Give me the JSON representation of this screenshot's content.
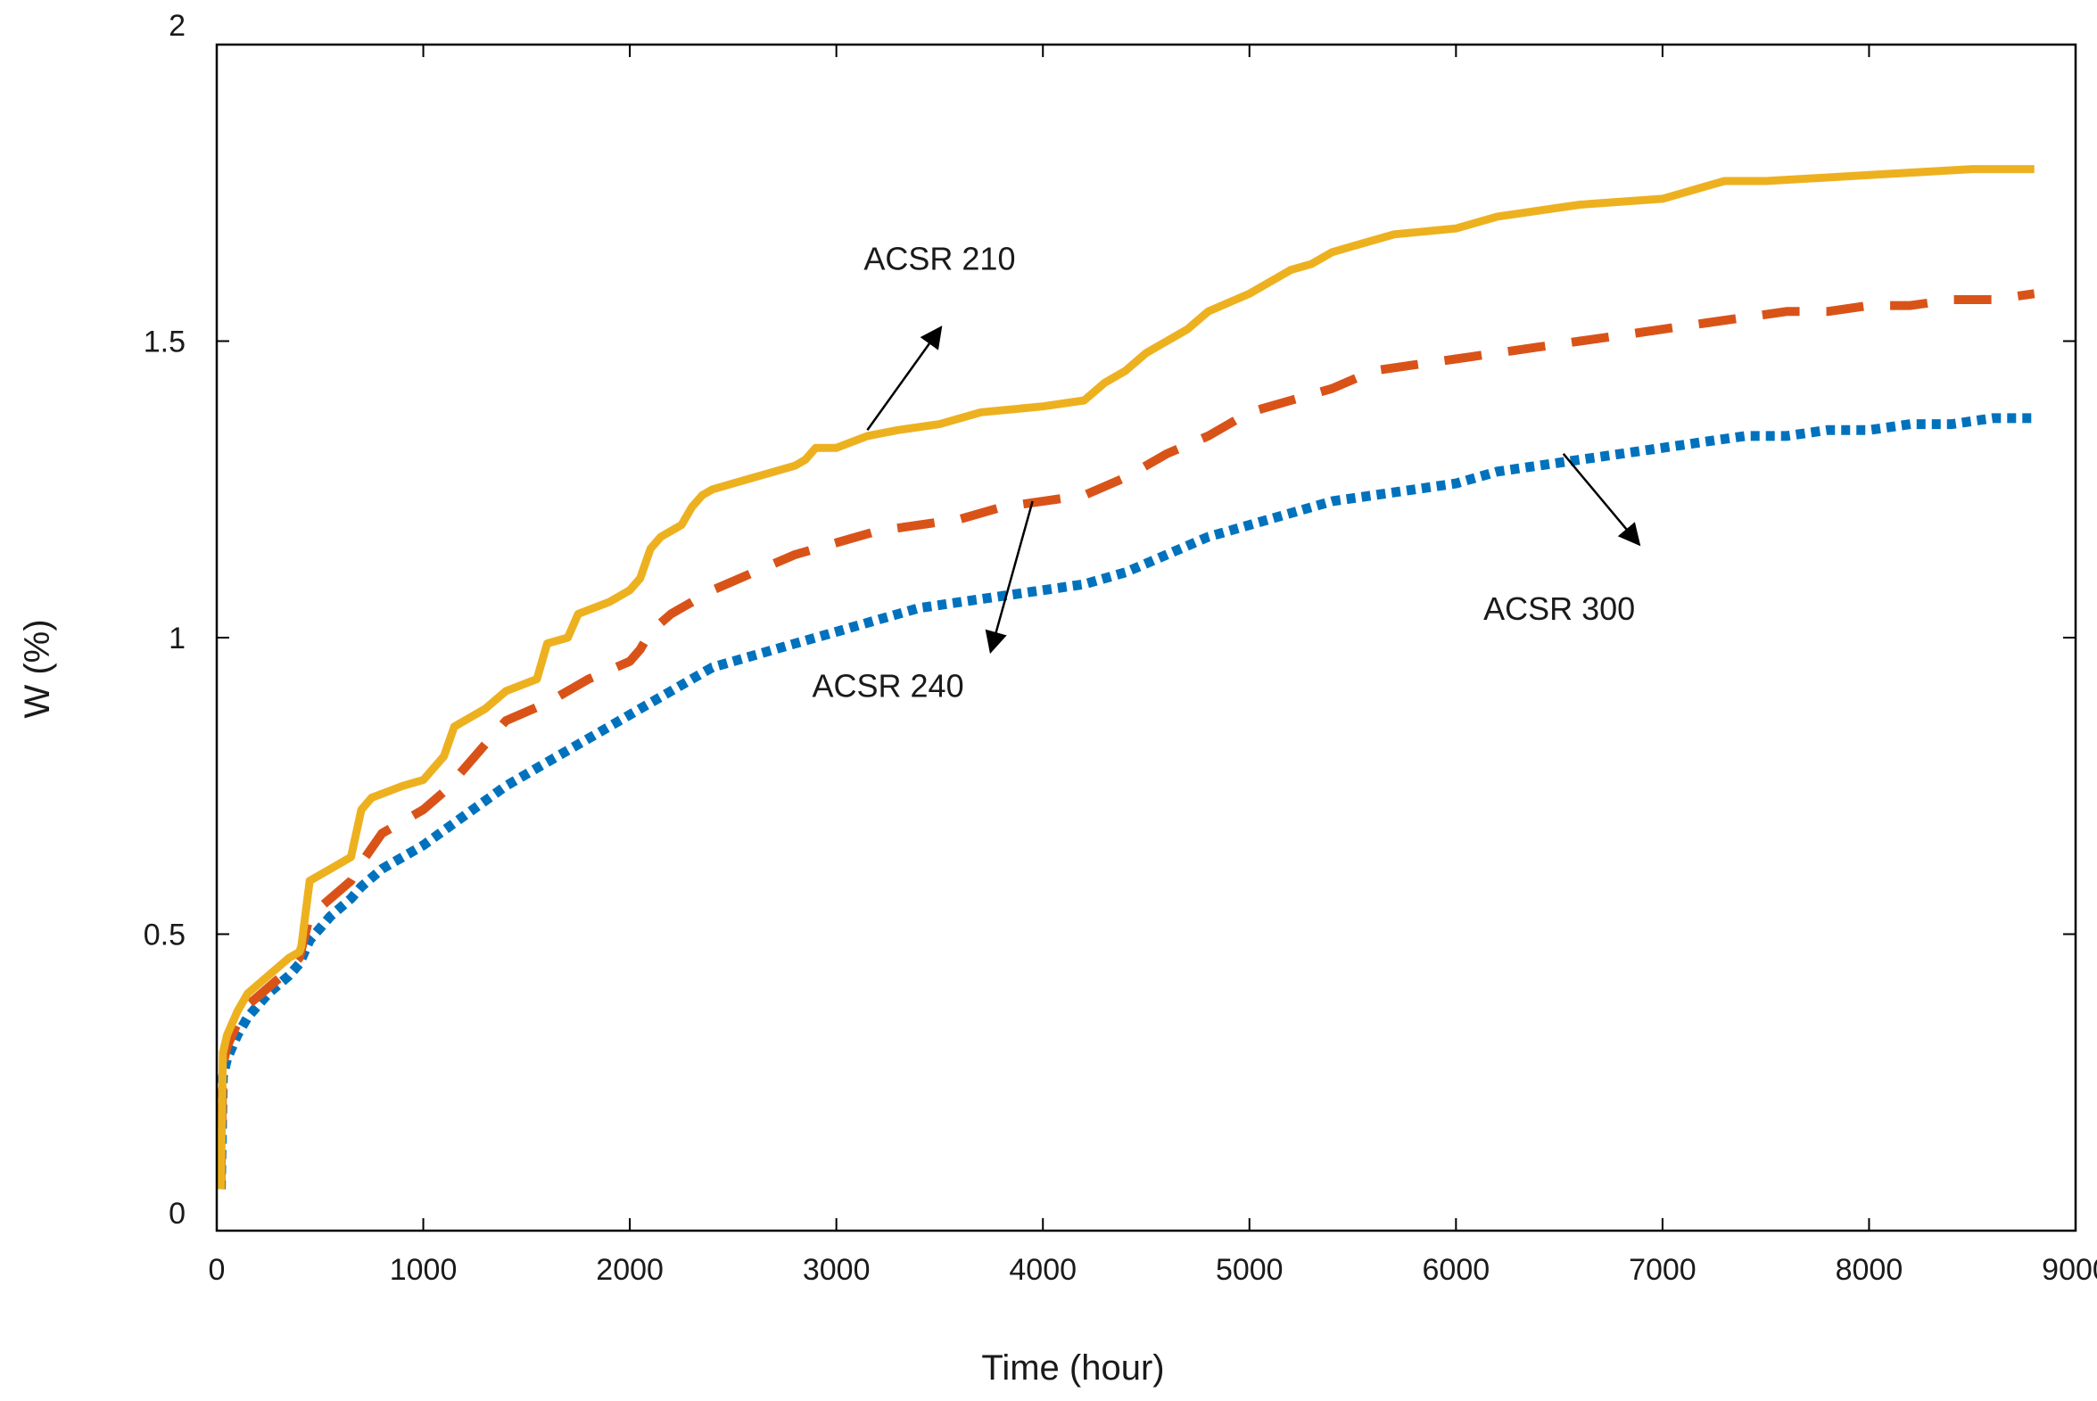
{
  "chart_data": {
    "type": "line",
    "title": "",
    "xlabel": "Time (hour)",
    "ylabel": "W (%)",
    "xlim": [
      0,
      9000
    ],
    "ylim": [
      0,
      2
    ],
    "grid": false,
    "x_ticks": [
      0,
      1000,
      2000,
      3000,
      4000,
      5000,
      6000,
      7000,
      8000,
      9000
    ],
    "x_tick_labels": [
      "0",
      "1000",
      "2000",
      "3000",
      "4000",
      "5000",
      "6000",
      "7000",
      "8000",
      "9000"
    ],
    "y_ticks": [
      0,
      0.5,
      1,
      1.5,
      2
    ],
    "y_tick_labels": [
      "0",
      "0.5",
      "1",
      "1.5",
      "2"
    ],
    "series": [
      {
        "name": "ACSR 210",
        "color": "#EDB120",
        "style": "solid",
        "x": [
          20,
          30,
          50,
          100,
          150,
          250,
          350,
          400,
          410,
          450,
          550,
          650,
          700,
          750,
          900,
          1000,
          1100,
          1150,
          1300,
          1400,
          1550,
          1600,
          1700,
          1750,
          1900,
          2000,
          2050,
          2100,
          2150,
          2250,
          2300,
          2350,
          2400,
          2500,
          2600,
          2700,
          2800,
          2850,
          2900,
          3000,
          3150,
          3300,
          3500,
          3600,
          3700,
          4000,
          4200,
          4300,
          4400,
          4500,
          4600,
          4700,
          4800,
          5000,
          5100,
          5200,
          5300,
          5400,
          5500,
          5700,
          6000,
          6200,
          6400,
          6600,
          7000,
          7100,
          7200,
          7300,
          7500,
          8000,
          8500,
          8800
        ],
        "y": [
          0.07,
          0.3,
          0.33,
          0.37,
          0.4,
          0.43,
          0.46,
          0.47,
          0.48,
          0.59,
          0.61,
          0.63,
          0.71,
          0.73,
          0.75,
          0.76,
          0.8,
          0.85,
          0.88,
          0.91,
          0.93,
          0.99,
          1.0,
          1.04,
          1.06,
          1.08,
          1.1,
          1.15,
          1.17,
          1.19,
          1.22,
          1.24,
          1.25,
          1.26,
          1.27,
          1.28,
          1.29,
          1.3,
          1.32,
          1.32,
          1.34,
          1.35,
          1.36,
          1.37,
          1.38,
          1.39,
          1.4,
          1.43,
          1.45,
          1.48,
          1.5,
          1.52,
          1.55,
          1.58,
          1.6,
          1.62,
          1.63,
          1.65,
          1.66,
          1.68,
          1.69,
          1.71,
          1.72,
          1.73,
          1.74,
          1.75,
          1.76,
          1.77,
          1.77,
          1.78,
          1.79,
          1.79
        ]
      },
      {
        "name": "ACSR 240",
        "color": "#D95319",
        "style": "dashed",
        "x": [
          20,
          30,
          50,
          100,
          150,
          250,
          350,
          400,
          450,
          550,
          650,
          700,
          800,
          900,
          1000,
          1100,
          1200,
          1300,
          1400,
          1600,
          1800,
          2000,
          2050,
          2100,
          2200,
          2300,
          2400,
          2600,
          2800,
          3000,
          3200,
          3400,
          3600,
          3800,
          4000,
          4200,
          4400,
          4600,
          4800,
          5000,
          5200,
          5400,
          5600,
          5800,
          6000,
          6200,
          6400,
          6600,
          6800,
          7000,
          7200,
          7400,
          7600,
          7800,
          8000,
          8200,
          8400,
          8600,
          8800
        ],
        "y": [
          0.07,
          0.28,
          0.31,
          0.35,
          0.38,
          0.41,
          0.44,
          0.46,
          0.53,
          0.56,
          0.59,
          0.62,
          0.67,
          0.69,
          0.71,
          0.74,
          0.78,
          0.82,
          0.86,
          0.89,
          0.93,
          0.96,
          0.98,
          1.01,
          1.04,
          1.06,
          1.08,
          1.11,
          1.14,
          1.16,
          1.18,
          1.19,
          1.2,
          1.22,
          1.23,
          1.24,
          1.27,
          1.31,
          1.34,
          1.38,
          1.4,
          1.42,
          1.45,
          1.46,
          1.47,
          1.48,
          1.49,
          1.5,
          1.51,
          1.52,
          1.53,
          1.54,
          1.55,
          1.55,
          1.56,
          1.56,
          1.57,
          1.57,
          1.58
        ]
      },
      {
        "name": "ACSR 300",
        "color": "#0072BD",
        "style": "dotted",
        "x": [
          20,
          30,
          50,
          100,
          150,
          250,
          350,
          400,
          450,
          550,
          650,
          700,
          800,
          1000,
          1200,
          1400,
          1600,
          1800,
          2000,
          2100,
          2200,
          2300,
          2400,
          2600,
          2800,
          3000,
          3200,
          3400,
          3600,
          3800,
          4000,
          4200,
          4400,
          4600,
          4800,
          5000,
          5200,
          5400,
          5600,
          5800,
          6000,
          6200,
          6400,
          6600,
          6800,
          7000,
          7200,
          7400,
          7600,
          7800,
          8000,
          8200,
          8400,
          8600,
          8800
        ],
        "y": [
          0.07,
          0.26,
          0.29,
          0.33,
          0.36,
          0.4,
          0.43,
          0.45,
          0.49,
          0.53,
          0.56,
          0.58,
          0.61,
          0.65,
          0.7,
          0.75,
          0.79,
          0.83,
          0.87,
          0.89,
          0.91,
          0.93,
          0.95,
          0.97,
          0.99,
          1.01,
          1.03,
          1.05,
          1.06,
          1.07,
          1.08,
          1.09,
          1.11,
          1.14,
          1.17,
          1.19,
          1.21,
          1.23,
          1.24,
          1.25,
          1.26,
          1.28,
          1.29,
          1.3,
          1.31,
          1.32,
          1.33,
          1.34,
          1.34,
          1.35,
          1.35,
          1.36,
          1.36,
          1.37,
          1.37
        ]
      }
    ],
    "annotations": [
      {
        "text": "ACSR 210",
        "series": "ACSR 210",
        "label_xy": [
          3500,
          1.62
        ],
        "arrow_from": [
          3150,
          1.35
        ],
        "arrow_to": [
          3500,
          1.52
        ]
      },
      {
        "text": "ACSR 240",
        "series": "ACSR 240",
        "label_xy": [
          3250,
          0.9
        ],
        "arrow_from": [
          3950,
          1.23
        ],
        "arrow_to": [
          3750,
          0.98
        ]
      },
      {
        "text": "ACSR 300",
        "series": "ACSR 300",
        "label_xy": [
          6500,
          1.03
        ],
        "arrow_from": [
          6520,
          1.31
        ],
        "arrow_to": [
          6880,
          1.16
        ]
      }
    ]
  }
}
